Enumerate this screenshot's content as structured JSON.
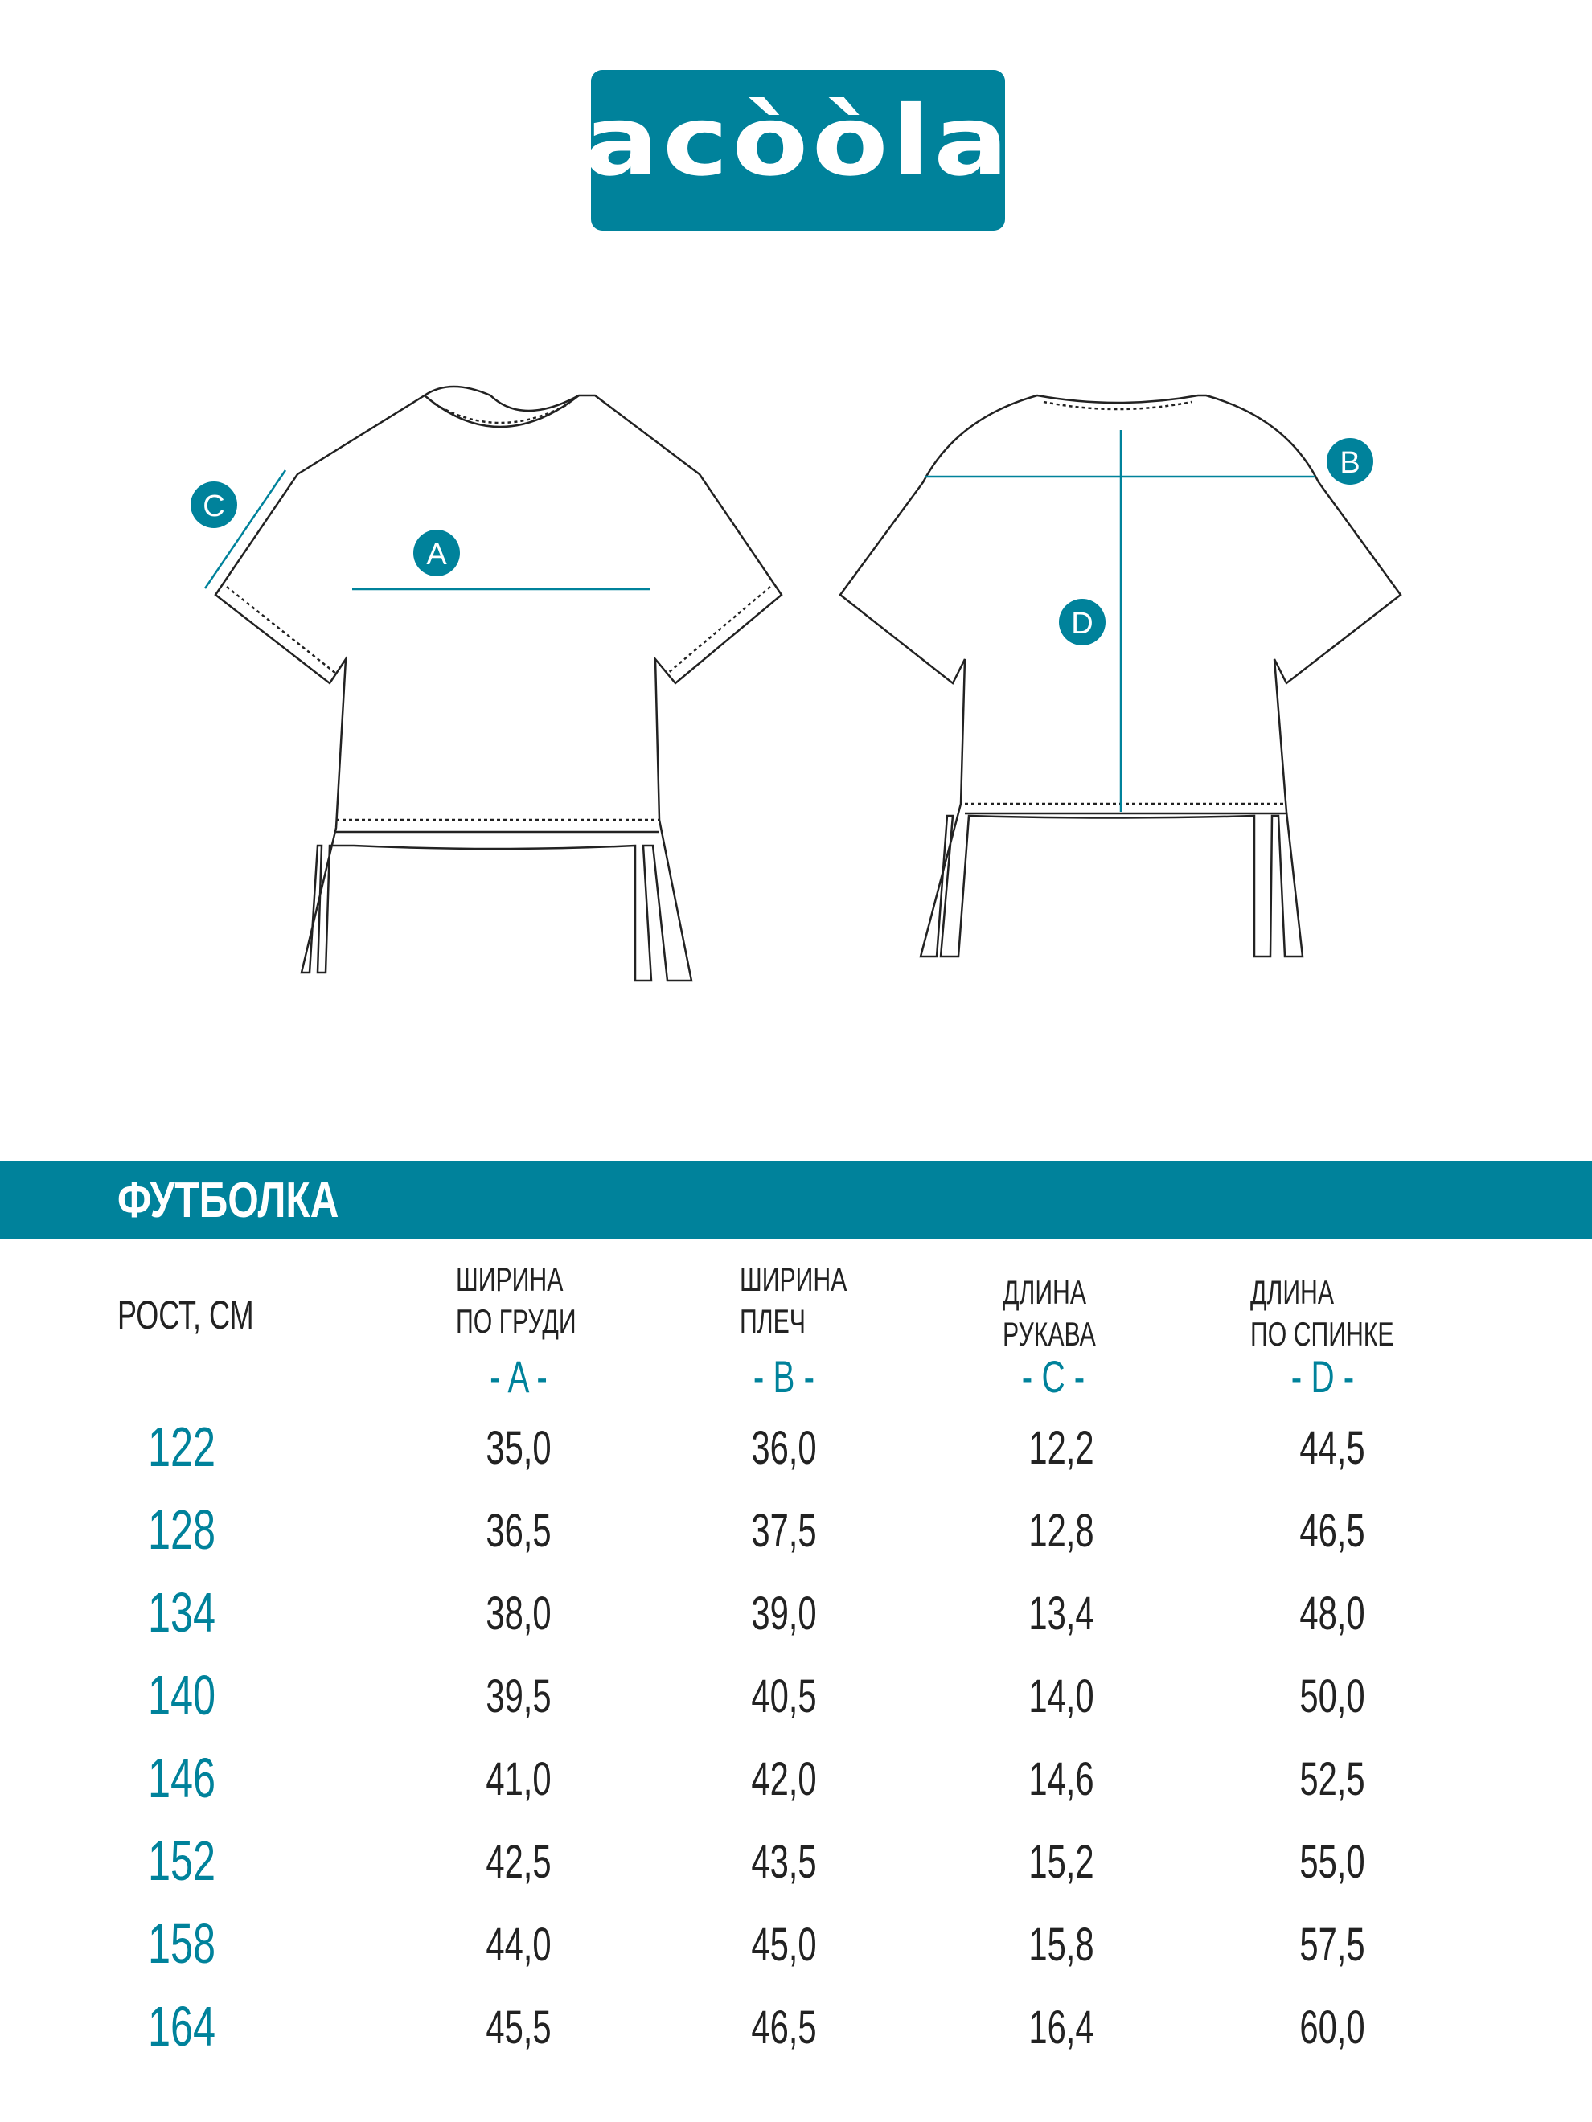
{
  "brand": {
    "logo_text": "acòòla",
    "color": "#00829b"
  },
  "diagram": {
    "labels": [
      "A",
      "B",
      "C",
      "D"
    ]
  },
  "product": {
    "title": "ФУТБОЛКА"
  },
  "table": {
    "height_header": "РОСТ, СМ",
    "columns": [
      {
        "line1": "ШИРИНА",
        "line2": "ПО ГРУДИ",
        "letter": "- A -"
      },
      {
        "line1": "ШИРИНА",
        "line2": "ПЛЕЧ",
        "letter": "- B -"
      },
      {
        "line1": "ДЛИНА",
        "line2": "РУКАВА",
        "letter": "- C -"
      },
      {
        "line1": "ДЛИНА",
        "line2": "ПО СПИНКЕ",
        "letter": "- D -"
      }
    ],
    "rows": [
      {
        "height": "122",
        "values": [
          "35,0",
          "36,0",
          "12,2",
          "44,5"
        ]
      },
      {
        "height": "128",
        "values": [
          "36,5",
          "37,5",
          "12,8",
          "46,5"
        ]
      },
      {
        "height": "134",
        "values": [
          "38,0",
          "39,0",
          "13,4",
          "48,0"
        ]
      },
      {
        "height": "140",
        "values": [
          "39,5",
          "40,5",
          "14,0",
          "50,0"
        ]
      },
      {
        "height": "146",
        "values": [
          "41,0",
          "42,0",
          "14,6",
          "52,5"
        ]
      },
      {
        "height": "152",
        "values": [
          "42,5",
          "43,5",
          "15,2",
          "55,0"
        ]
      },
      {
        "height": "158",
        "values": [
          "44,0",
          "45,0",
          "15,8",
          "57,5"
        ]
      },
      {
        "height": "164",
        "values": [
          "45,5",
          "46,5",
          "16,4",
          "60,0"
        ]
      }
    ]
  }
}
